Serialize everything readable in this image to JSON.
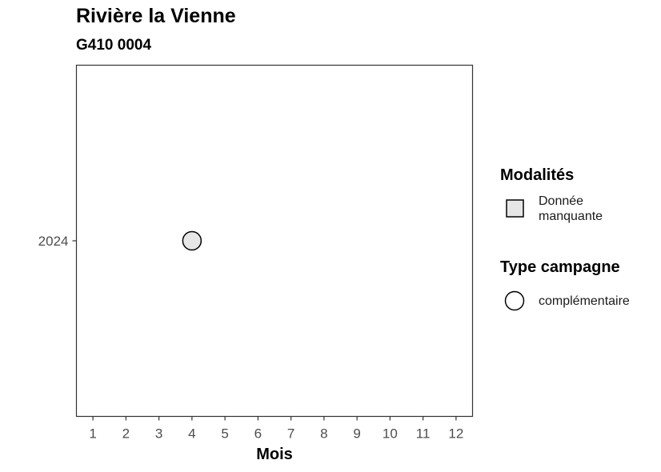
{
  "chart_data": {
    "type": "scatter",
    "title": "Rivière la Vienne",
    "subtitle": "G410 0004",
    "xlabel": "Mois",
    "ylabel": "",
    "x_ticks": [
      1,
      2,
      3,
      4,
      5,
      6,
      7,
      8,
      9,
      10,
      11,
      12
    ],
    "y_categories": [
      "2024"
    ],
    "xlim": [
      0.5,
      12.5
    ],
    "points": [
      {
        "x": 4,
        "y": "2024",
        "modalite": "Donnée manquante",
        "type_campagne": "complémentaire"
      }
    ],
    "grid": false,
    "legend_position": "right",
    "legends": [
      {
        "title": "Modalités",
        "entries": [
          {
            "label": "Donnée manquante",
            "shape": "square",
            "fill": "#e6e6e6"
          }
        ]
      },
      {
        "title": "Type campagne",
        "entries": [
          {
            "label": "complémentaire",
            "shape": "circle",
            "fill": "#ffffff"
          }
        ]
      }
    ],
    "colors": {
      "point_fill": "#e6e6e6",
      "stroke": "#000000",
      "panel_border": "#333333"
    }
  }
}
